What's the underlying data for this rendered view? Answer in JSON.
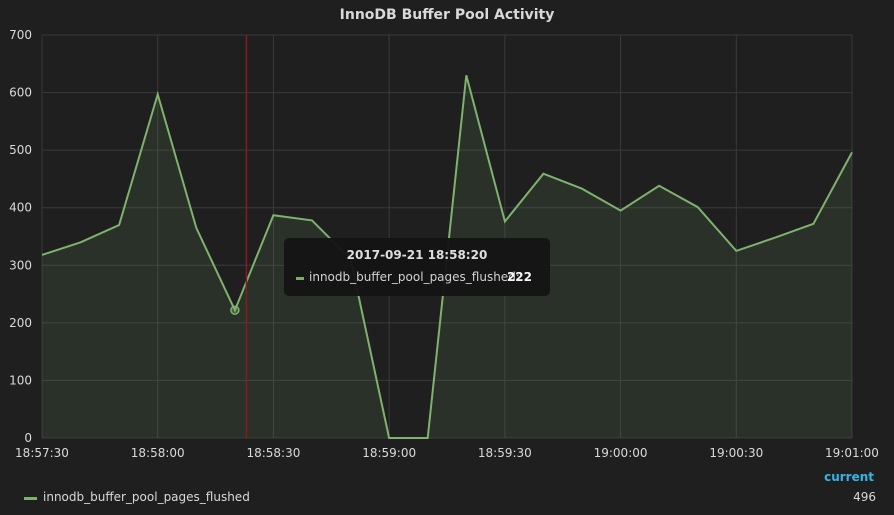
{
  "panel": {
    "title": "InnoDB Buffer Pool Activity"
  },
  "colors": {
    "series": "#7eb26d",
    "crosshair": "#8b1a1a",
    "grid": "#3a3a3a",
    "background": "#1f1f20",
    "legend_header": "#33b5e5"
  },
  "tooltip": {
    "time": "2017-09-21 18:58:20",
    "series": "innodb_buffer_pool_pages_flushed:",
    "value": "222"
  },
  "legend": {
    "header": "current",
    "series_name": "innodb_buffer_pool_pages_flushed",
    "current": "496"
  },
  "chart_data": {
    "type": "area",
    "title": "InnoDB Buffer Pool Activity",
    "xlabel": "",
    "ylabel": "",
    "ylim": [
      0,
      700
    ],
    "yticks": [
      0,
      100,
      200,
      300,
      400,
      500,
      600,
      700
    ],
    "xticks": [
      "18:57:30",
      "18:58:00",
      "18:58:30",
      "18:59:00",
      "18:59:30",
      "19:00:00",
      "19:00:30",
      "19:01:00"
    ],
    "grid": true,
    "legend_position": "bottom",
    "crosshair_time": "18:58:23",
    "highlight_time": "18:58:20",
    "series": [
      {
        "name": "innodb_buffer_pool_pages_flushed",
        "x": [
          "18:57:30",
          "18:57:40",
          "18:57:50",
          "18:58:00",
          "18:58:10",
          "18:58:20",
          "18:58:30",
          "18:58:40",
          "18:58:50",
          "18:59:00",
          "18:59:10",
          "18:59:20",
          "18:59:30",
          "18:59:40",
          "18:59:50",
          "19:00:00",
          "19:00:10",
          "19:00:20",
          "19:00:30",
          "19:00:40",
          "19:00:50",
          "19:01:00"
        ],
        "values": [
          318,
          340,
          370,
          597,
          365,
          222,
          387,
          378,
          311,
          0,
          0,
          630,
          376,
          459,
          433,
          395,
          438,
          401,
          325,
          348,
          372,
          496
        ]
      }
    ]
  }
}
